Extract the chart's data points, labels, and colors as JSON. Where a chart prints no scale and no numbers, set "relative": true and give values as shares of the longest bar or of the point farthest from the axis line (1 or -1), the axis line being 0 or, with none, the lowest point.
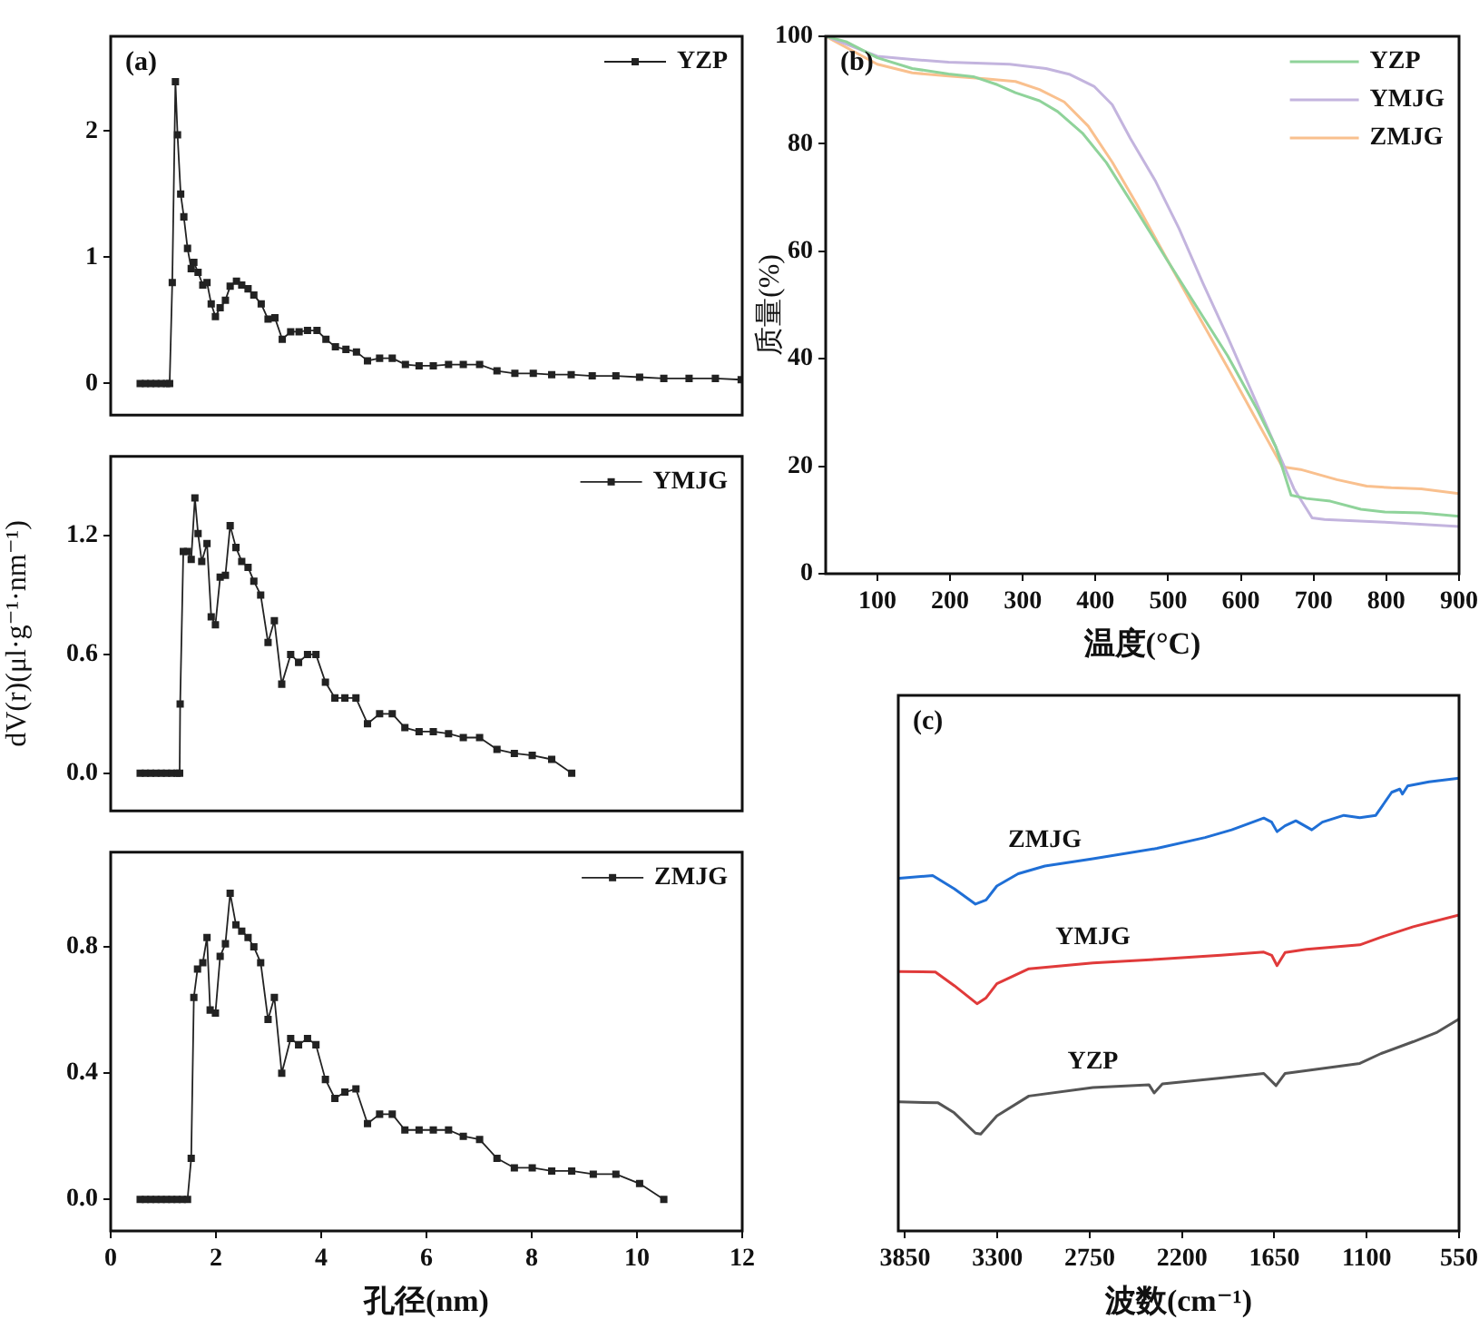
{
  "chart_data": [
    {
      "type": "line",
      "annotations": [
        "(a)"
      ],
      "xlim": [
        0,
        12
      ],
      "ylim": [
        -0.25,
        2.75
      ],
      "yticks": [
        0,
        1,
        2
      ],
      "tick_labels": "y",
      "legend": "top right",
      "marker": "square",
      "series": [
        {
          "name": "YZP",
          "color": "#222222",
          "x": [
            0.56,
            0.66,
            0.76,
            0.86,
            0.96,
            1.06,
            1.12,
            1.17,
            1.23,
            1.27,
            1.33,
            1.39,
            1.46,
            1.53,
            1.58,
            1.66,
            1.75,
            1.83,
            1.91,
            1.99,
            2.08,
            2.18,
            2.27,
            2.39,
            2.49,
            2.61,
            2.72,
            2.86,
            2.99,
            3.12,
            3.26,
            3.42,
            3.58,
            3.74,
            3.92,
            4.09,
            4.27,
            4.47,
            4.67,
            4.88,
            5.11,
            5.35,
            5.6,
            5.86,
            6.13,
            6.42,
            6.7,
            7.01,
            7.34,
            7.68,
            8.03,
            8.38,
            8.75,
            9.15,
            9.6,
            10.05,
            10.51,
            10.99,
            11.49,
            11.98
          ],
          "values": [
            0,
            0,
            0,
            0,
            0,
            0,
            0,
            0.8,
            2.39,
            1.97,
            1.5,
            1.32,
            1.07,
            0.91,
            0.96,
            0.88,
            0.78,
            0.8,
            0.63,
            0.53,
            0.6,
            0.66,
            0.77,
            0.81,
            0.78,
            0.75,
            0.7,
            0.63,
            0.51,
            0.52,
            0.35,
            0.41,
            0.41,
            0.42,
            0.42,
            0.35,
            0.29,
            0.27,
            0.25,
            0.18,
            0.2,
            0.2,
            0.15,
            0.14,
            0.14,
            0.15,
            0.15,
            0.15,
            0.1,
            0.08,
            0.08,
            0.07,
            0.07,
            0.06,
            0.06,
            0.05,
            0.04,
            0.04,
            0.04,
            0.03
          ]
        }
      ]
    },
    {
      "type": "line",
      "ylabel": "dV(r)(μl·g⁻¹·nm⁻¹)",
      "xlim": [
        0,
        12
      ],
      "ylim": [
        -0.19,
        1.6
      ],
      "yticks": [
        {
          "value": 0,
          "label": "0.0"
        },
        0.6,
        1.2
      ],
      "tick_labels": "y",
      "legend": "top right",
      "marker": "square",
      "series": [
        {
          "name": "YMJG",
          "color": "#222222",
          "x": [
            0.56,
            0.66,
            0.76,
            0.86,
            0.96,
            1.06,
            1.16,
            1.26,
            1.31,
            1.32,
            1.38,
            1.46,
            1.53,
            1.6,
            1.66,
            1.73,
            1.83,
            1.91,
            1.99,
            2.08,
            2.18,
            2.27,
            2.38,
            2.49,
            2.61,
            2.72,
            2.85,
            2.99,
            3.11,
            3.25,
            3.42,
            3.57,
            3.74,
            3.9,
            4.08,
            4.26,
            4.45,
            4.66,
            4.88,
            5.11,
            5.35,
            5.59,
            5.86,
            6.13,
            6.42,
            6.7,
            7.01,
            7.34,
            7.67,
            8.01,
            8.38,
            8.76
          ],
          "values": [
            0,
            0,
            0,
            0,
            0,
            0,
            0,
            0,
            0,
            0.35,
            1.12,
            1.12,
            1.08,
            1.39,
            1.21,
            1.07,
            1.16,
            0.79,
            0.75,
            0.99,
            1.0,
            1.25,
            1.14,
            1.07,
            1.04,
            0.97,
            0.9,
            0.66,
            0.77,
            0.45,
            0.6,
            0.56,
            0.6,
            0.6,
            0.46,
            0.38,
            0.38,
            0.38,
            0.25,
            0.3,
            0.3,
            0.23,
            0.21,
            0.21,
            0.2,
            0.18,
            0.18,
            0.12,
            0.1,
            0.09,
            0.07,
            0
          ]
        }
      ]
    },
    {
      "type": "line",
      "xlabel": "孔径(nm)",
      "xlim": [
        0,
        12
      ],
      "xticks": [
        0,
        2,
        4,
        6,
        8,
        10,
        12
      ],
      "ylim": [
        -0.1,
        1.1
      ],
      "yticks": [
        {
          "value": 0,
          "label": "0.0"
        },
        0.4,
        0.8
      ],
      "legend": "top right",
      "marker": "square",
      "series": [
        {
          "name": "ZMJG",
          "color": "#222222",
          "x": [
            0.56,
            0.66,
            0.76,
            0.86,
            0.96,
            1.06,
            1.16,
            1.26,
            1.36,
            1.46,
            1.53,
            1.58,
            1.65,
            1.75,
            1.83,
            1.89,
            1.99,
            2.08,
            2.18,
            2.27,
            2.38,
            2.49,
            2.61,
            2.72,
            2.85,
            2.99,
            3.11,
            3.25,
            3.42,
            3.57,
            3.74,
            3.9,
            4.08,
            4.26,
            4.45,
            4.66,
            4.88,
            5.11,
            5.35,
            5.59,
            5.86,
            6.13,
            6.42,
            6.7,
            7.01,
            7.34,
            7.67,
            8.01,
            8.38,
            8.76,
            9.17,
            9.6,
            10.05,
            10.51
          ],
          "values": [
            0,
            0,
            0,
            0,
            0,
            0,
            0,
            0,
            0,
            0,
            0.13,
            0.64,
            0.73,
            0.75,
            0.83,
            0.6,
            0.59,
            0.77,
            0.81,
            0.97,
            0.87,
            0.85,
            0.83,
            0.8,
            0.75,
            0.57,
            0.64,
            0.4,
            0.51,
            0.49,
            0.51,
            0.49,
            0.38,
            0.32,
            0.34,
            0.35,
            0.24,
            0.27,
            0.27,
            0.22,
            0.22,
            0.22,
            0.22,
            0.2,
            0.19,
            0.13,
            0.1,
            0.1,
            0.09,
            0.09,
            0.08,
            0.08,
            0.05,
            0
          ]
        }
      ]
    },
    {
      "type": "line",
      "annotations": [
        "(b)"
      ],
      "xlabel": "温度(°C)",
      "ylabel": "质量(%)",
      "xlim": [
        29,
        900
      ],
      "xticks": [
        100,
        200,
        300,
        400,
        500,
        600,
        700,
        800,
        900
      ],
      "ylim": [
        0,
        100
      ],
      "yticks": [
        0,
        20,
        40,
        60,
        80,
        100
      ],
      "legend": "top right",
      "series": [
        {
          "name": "YZP",
          "color": "#8fd39a",
          "x": [
            29,
            57,
            100,
            148,
            198,
            232,
            265,
            290,
            323,
            348,
            382,
            415,
            457,
            498,
            540,
            582,
            623,
            648,
            669,
            690,
            723,
            765,
            798,
            848,
            900
          ],
          "values": [
            100,
            99,
            96,
            94,
            93,
            92.5,
            91,
            89.5,
            88,
            86,
            82,
            76.5,
            67.5,
            58.5,
            49.5,
            40.5,
            30.4,
            23.6,
            14.6,
            14,
            13.5,
            12,
            11.5,
            11.3,
            10.7
          ]
        },
        {
          "name": "YMJG",
          "color": "#c3b4de",
          "x": [
            29,
            100,
            148,
            198,
            282,
            332,
            365,
            398,
            423,
            448,
            482,
            515,
            548,
            582,
            615,
            648,
            673,
            698,
            715,
            798,
            900
          ],
          "values": [
            100,
            96.3,
            95.7,
            95.2,
            94.8,
            94,
            92.9,
            90.7,
            87.3,
            81,
            73.2,
            64.2,
            54,
            44,
            33.8,
            23.6,
            15.8,
            10.4,
            10.1,
            9.6,
            8.8
          ]
        },
        {
          "name": "ZMJG",
          "color": "#f9c08e",
          "x": [
            29,
            100,
            148,
            198,
            248,
            290,
            323,
            357,
            390,
            423,
            457,
            498,
            540,
            582,
            623,
            657,
            682,
            732,
            773,
            807,
            848,
            900
          ],
          "values": [
            100,
            94.8,
            93.2,
            92.6,
            92.1,
            91.6,
            90.1,
            87.8,
            83.3,
            76.6,
            68.7,
            58.6,
            48.4,
            38.3,
            28.2,
            19.9,
            19.4,
            17.5,
            16.3,
            16,
            15.8,
            14.9
          ]
        }
      ]
    },
    {
      "type": "line",
      "relative": true,
      "annotations": [
        "(c)"
      ],
      "xlabel": "波数(cm⁻¹)",
      "xlim": [
        3890,
        550
      ],
      "xticks": [
        3850,
        3300,
        2750,
        2200,
        1650,
        1100,
        550
      ],
      "series": [
        {
          "name": "ZMJG",
          "color": "#1f6fd6",
          "x": [
            3885,
            3685,
            3557,
            3430,
            3367,
            3303,
            3176,
            3017,
            2731,
            2349,
            2063,
            1904,
            1713,
            1666,
            1634,
            1586,
            1522,
            1427,
            1364,
            1236,
            1141,
            1046,
            951,
            903,
            887,
            856,
            729,
            550
          ],
          "values": [
            0.779,
            0.785,
            0.756,
            0.722,
            0.731,
            0.762,
            0.789,
            0.806,
            0.822,
            0.845,
            0.869,
            0.886,
            0.912,
            0.903,
            0.882,
            0.895,
            0.906,
            0.886,
            0.903,
            0.918,
            0.913,
            0.918,
            0.969,
            0.976,
            0.965,
            0.983,
            0.992,
            1
          ]
        },
        {
          "name": "YMJG",
          "color": "#e03a3a",
          "x": [
            3885,
            3669,
            3557,
            3421,
            3367,
            3303,
            3112,
            2731,
            2349,
            1968,
            1713,
            1666,
            1634,
            1586,
            1459,
            1141,
            1014,
            823,
            550
          ],
          "values": [
            0.573,
            0.572,
            0.542,
            0.502,
            0.515,
            0.546,
            0.579,
            0.592,
            0.6,
            0.609,
            0.616,
            0.609,
            0.586,
            0.615,
            0.622,
            0.632,
            0.649,
            0.672,
            0.698
          ]
        },
        {
          "name": "YZP",
          "color": "#555555",
          "x": [
            3885,
            3653,
            3557,
            3430,
            3399,
            3303,
            3112,
            2731,
            2397,
            2366,
            2317,
            1968,
            1713,
            1640,
            1586,
            1141,
            1014,
            823,
            680,
            550
          ],
          "values": [
            0.285,
            0.283,
            0.261,
            0.216,
            0.214,
            0.254,
            0.298,
            0.317,
            0.323,
            0.305,
            0.325,
            0.338,
            0.348,
            0.321,
            0.348,
            0.37,
            0.392,
            0.418,
            0.439,
            0.468
          ]
        }
      ]
    }
  ]
}
